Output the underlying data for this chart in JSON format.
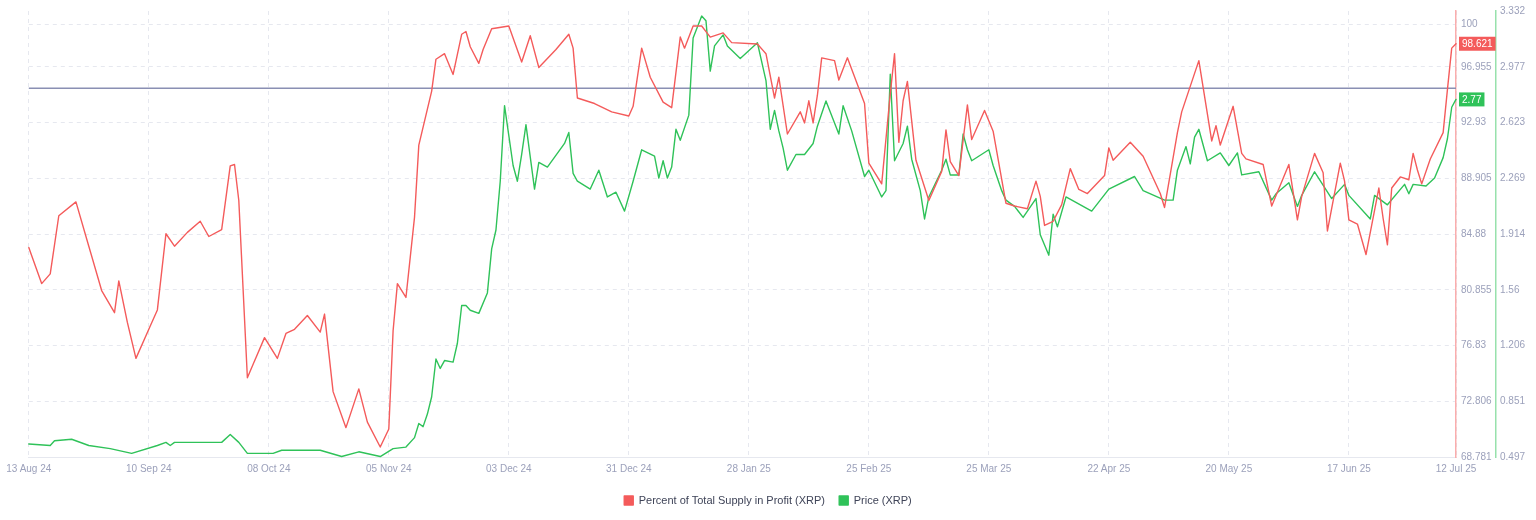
{
  "chart_data": {
    "type": "line",
    "series": [
      {
        "name": "Percent of Total Supply in Profit (XRP)",
        "color": "#f45b5b",
        "axis": "y",
        "x": [
          "2024-08-13",
          "2024-08-16",
          "2024-08-18",
          "2024-08-20",
          "2024-08-24",
          "2024-08-27",
          "2024-08-30",
          "2024-09-02",
          "2024-09-03",
          "2024-09-05",
          "2024-09-07",
          "2024-09-10",
          "2024-09-12",
          "2024-09-14",
          "2024-09-16",
          "2024-09-19",
          "2024-09-22",
          "2024-09-24",
          "2024-09-27",
          "2024-09-29",
          "2024-09-30",
          "2024-10-01",
          "2024-10-03",
          "2024-10-07",
          "2024-10-10",
          "2024-10-12",
          "2024-10-14",
          "2024-10-17",
          "2024-10-20",
          "2024-10-21",
          "2024-10-23",
          "2024-10-26",
          "2024-10-29",
          "2024-10-31",
          "2024-11-03",
          "2024-11-05",
          "2024-11-06",
          "2024-11-07",
          "2024-11-09",
          "2024-11-11",
          "2024-11-12",
          "2024-11-15",
          "2024-11-16",
          "2024-11-18",
          "2024-11-20",
          "2024-11-22",
          "2024-11-23",
          "2024-11-24",
          "2024-11-26",
          "2024-11-27",
          "2024-11-29",
          "2024-12-03",
          "2024-12-06",
          "2024-12-08",
          "2024-12-10",
          "2024-12-14",
          "2024-12-17",
          "2024-12-18",
          "2024-12-19",
          "2024-12-23",
          "2024-12-27",
          "2024-12-31",
          "2025-01-01",
          "2025-01-03",
          "2025-01-05",
          "2025-01-08",
          "2025-01-10",
          "2025-01-12",
          "2025-01-13",
          "2025-01-15",
          "2025-01-17",
          "2025-01-19",
          "2025-01-22",
          "2025-01-24",
          "2025-01-30",
          "2025-02-01",
          "2025-02-03",
          "2025-02-04",
          "2025-02-06",
          "2025-02-09",
          "2025-02-10",
          "2025-02-11",
          "2025-02-12",
          "2025-02-13",
          "2025-02-14",
          "2025-02-17",
          "2025-02-18",
          "2025-02-20",
          "2025-02-24",
          "2025-02-25",
          "2025-02-28",
          "2025-03-02",
          "2025-03-03",
          "2025-03-04",
          "2025-03-05",
          "2025-03-06",
          "2025-03-08",
          "2025-03-11",
          "2025-03-14",
          "2025-03-15",
          "2025-03-16",
          "2025-03-18",
          "2025-03-20",
          "2025-03-21",
          "2025-03-24",
          "2025-03-26",
          "2025-03-29",
          "2025-03-31",
          "2025-04-03",
          "2025-04-05",
          "2025-04-06",
          "2025-04-07",
          "2025-04-09",
          "2025-04-11",
          "2025-04-13",
          "2025-04-15",
          "2025-04-17",
          "2025-04-21",
          "2025-04-22",
          "2025-04-23",
          "2025-04-27",
          "2025-04-30",
          "2025-05-04",
          "2025-05-05",
          "2025-05-08",
          "2025-05-09",
          "2025-05-13",
          "2025-05-16",
          "2025-05-17",
          "2025-05-18",
          "2025-05-21",
          "2025-05-23",
          "2025-05-24",
          "2025-05-28",
          "2025-05-30",
          "2025-06-03",
          "2025-06-05",
          "2025-06-06",
          "2025-06-09",
          "2025-06-11",
          "2025-06-12",
          "2025-06-15",
          "2025-06-16",
          "2025-06-17",
          "2025-06-19",
          "2025-06-21",
          "2025-06-24",
          "2025-06-25",
          "2025-06-26",
          "2025-06-27",
          "2025-06-29",
          "2025-07-01",
          "2025-07-02",
          "2025-07-03",
          "2025-07-04",
          "2025-07-06",
          "2025-07-09",
          "2025-07-10",
          "2025-07-11",
          "2025-07-12"
        ],
        "values": [
          83.9,
          81.3,
          82.0,
          86.2,
          87.2,
          84.0,
          80.8,
          79.2,
          81.5,
          78.5,
          75.9,
          78.0,
          79.4,
          84.9,
          84.0,
          85.0,
          85.8,
          84.7,
          85.2,
          89.8,
          89.9,
          87.3,
          74.5,
          77.4,
          75.9,
          77.7,
          78.0,
          79.0,
          77.8,
          79.1,
          73.5,
          70.9,
          73.7,
          71.3,
          69.5,
          70.8,
          77.9,
          81.3,
          80.3,
          86.1,
          91.3,
          95.2,
          97.5,
          97.9,
          96.4,
          99.3,
          99.5,
          98.4,
          97.2,
          98.2,
          99.7,
          99.9,
          97.3,
          99.2,
          96.9,
          98.2,
          99.3,
          98.3,
          94.7,
          94.3,
          93.7,
          93.4,
          94.1,
          98.3,
          96.2,
          94.4,
          94.0,
          99.1,
          98.3,
          99.9,
          99.9,
          99.1,
          99.4,
          98.7,
          98.6,
          97.9,
          94.7,
          96.2,
          92.1,
          93.7,
          92.9,
          94.5,
          92.9,
          94.9,
          97.6,
          97.4,
          96.0,
          97.6,
          94.3,
          90.0,
          88.5,
          95.0,
          97.9,
          91.5,
          94.5,
          95.9,
          90.2,
          87.3,
          89.4,
          92.4,
          90.1,
          89.1,
          94.2,
          91.7,
          93.8,
          92.3,
          87.1,
          86.9,
          86.7,
          88.7,
          87.6,
          85.5,
          85.8,
          87.0,
          89.6,
          88.1,
          87.8,
          89.1,
          91.1,
          90.2,
          91.5,
          90.5,
          87.8,
          86.8,
          92.2,
          93.7,
          97.4,
          91.6,
          92.7,
          91.3,
          94.1,
          90.7,
          90.3,
          89.9,
          86.9,
          89.9,
          85.9,
          87.6,
          90.7,
          89.3,
          85.1,
          90.0,
          88.7,
          85.9,
          85.6,
          83.4,
          88.2,
          86.0,
          84.1,
          88.2,
          89.0,
          88.8,
          90.7,
          89.5,
          88.5,
          90.3,
          92.2,
          95.3,
          98.3,
          98.621
        ],
        "value_labels": [
          null,
          null,
          null,
          null,
          null,
          null,
          null,
          null,
          null,
          null,
          null,
          null,
          null,
          null,
          null,
          null,
          null,
          null,
          null,
          null,
          null,
          null,
          null,
          null,
          null,
          null,
          null,
          null,
          null,
          null,
          null,
          null,
          null,
          null,
          null,
          null,
          null,
          null,
          null,
          null,
          null,
          null,
          null,
          null,
          null,
          null,
          null,
          null,
          null,
          null,
          null,
          null,
          null,
          null,
          null,
          null,
          null,
          null,
          null,
          null,
          null,
          null,
          null,
          null,
          null,
          null,
          null,
          null,
          null,
          null,
          null,
          null,
          null,
          null,
          null,
          null,
          null,
          null,
          null,
          null,
          null,
          null,
          null,
          null,
          null,
          null,
          null,
          null,
          null,
          null,
          null,
          null,
          null,
          null,
          null,
          null,
          null,
          null,
          null,
          null,
          null,
          null,
          null,
          null,
          null,
          null,
          null,
          null,
          null,
          null,
          null,
          null,
          null,
          null,
          null,
          null,
          null,
          null,
          null,
          null,
          null,
          null,
          null,
          null,
          null,
          null,
          null,
          null,
          null,
          null,
          null,
          null,
          null,
          null,
          null,
          null,
          null,
          null,
          null,
          null,
          null,
          null,
          null,
          null,
          null,
          null,
          null,
          null,
          null,
          null,
          null,
          null,
          null,
          null,
          null,
          null,
          null,
          null,
          null,
          "98.621"
        ]
      },
      {
        "name": "Price (XRP)",
        "color": "#2fc259",
        "axis": "y2",
        "x": [
          "2024-08-13",
          "2024-08-18",
          "2024-08-19",
          "2024-08-23",
          "2024-08-27",
          "2024-09-01",
          "2024-09-06",
          "2024-09-12",
          "2024-09-14",
          "2024-09-15",
          "2024-09-16",
          "2024-09-27",
          "2024-09-29",
          "2024-10-01",
          "2024-10-03",
          "2024-10-09",
          "2024-10-11",
          "2024-10-20",
          "2024-10-25",
          "2024-10-29",
          "2024-11-03",
          "2024-11-06",
          "2024-11-09",
          "2024-11-11",
          "2024-11-12",
          "2024-11-13",
          "2024-11-14",
          "2024-11-15",
          "2024-11-16",
          "2024-11-17",
          "2024-11-18",
          "2024-11-20",
          "2024-11-21",
          "2024-11-22",
          "2024-11-23",
          "2024-11-24",
          "2024-11-26",
          "2024-11-28",
          "2024-11-29",
          "2024-11-30",
          "2024-12-01",
          "2024-12-02",
          "2024-12-03",
          "2024-12-04",
          "2024-12-05",
          "2024-12-06",
          "2024-12-07",
          "2024-12-09",
          "2024-12-10",
          "2024-12-12",
          "2024-12-16",
          "2024-12-17",
          "2024-12-18",
          "2024-12-19",
          "2024-12-22",
          "2024-12-24",
          "2024-12-26",
          "2024-12-28",
          "2024-12-30",
          "2025-01-01",
          "2025-01-03",
          "2025-01-06",
          "2025-01-07",
          "2025-01-08",
          "2025-01-09",
          "2025-01-10",
          "2025-01-11",
          "2025-01-12",
          "2025-01-14",
          "2025-01-15",
          "2025-01-16",
          "2025-01-17",
          "2025-01-18",
          "2025-01-19",
          "2025-01-20",
          "2025-01-22",
          "2025-01-23",
          "2025-01-26",
          "2025-01-30",
          "2025-02-01",
          "2025-02-02",
          "2025-02-03",
          "2025-02-04",
          "2025-02-05",
          "2025-02-06",
          "2025-02-08",
          "2025-02-10",
          "2025-02-12",
          "2025-02-13",
          "2025-02-15",
          "2025-02-18",
          "2025-02-19",
          "2025-02-21",
          "2025-02-24",
          "2025-02-25",
          "2025-02-28",
          "2025-03-01",
          "2025-03-02",
          "2025-03-03",
          "2025-03-05",
          "2025-03-06",
          "2025-03-07",
          "2025-03-09",
          "2025-03-10",
          "2025-03-11",
          "2025-03-14",
          "2025-03-15",
          "2025-03-16",
          "2025-03-18",
          "2025-03-19",
          "2025-03-20",
          "2025-03-21",
          "2025-03-25",
          "2025-03-26",
          "2025-03-28",
          "2025-03-29",
          "2025-03-31",
          "2025-04-02",
          "2025-04-05",
          "2025-04-06",
          "2025-04-08",
          "2025-04-09",
          "2025-04-10",
          "2025-04-12",
          "2025-04-18",
          "2025-04-22",
          "2025-04-28",
          "2025-04-30",
          "2025-05-05",
          "2025-05-07",
          "2025-05-08",
          "2025-05-10",
          "2025-05-11",
          "2025-05-12",
          "2025-05-13",
          "2025-05-15",
          "2025-05-18",
          "2025-05-20",
          "2025-05-22",
          "2025-05-23",
          "2025-05-27",
          "2025-05-30",
          "2025-05-31",
          "2025-06-03",
          "2025-06-05",
          "2025-06-06",
          "2025-06-09",
          "2025-06-13",
          "2025-06-16",
          "2025-06-17",
          "2025-06-22",
          "2025-06-23",
          "2025-06-26",
          "2025-06-30",
          "2025-07-01",
          "2025-07-02",
          "2025-07-05",
          "2025-07-07",
          "2025-07-09",
          "2025-07-10",
          "2025-07-11",
          "2025-07-12"
        ],
        "values": [
          0.58,
          0.57,
          0.6,
          0.61,
          0.57,
          0.55,
          0.52,
          0.57,
          0.59,
          0.57,
          0.59,
          0.59,
          0.64,
          0.59,
          0.52,
          0.52,
          0.54,
          0.54,
          0.5,
          0.53,
          0.5,
          0.55,
          0.56,
          0.62,
          0.71,
          0.69,
          0.77,
          0.88,
          1.12,
          1.06,
          1.11,
          1.1,
          1.22,
          1.46,
          1.46,
          1.43,
          1.41,
          1.54,
          1.82,
          1.94,
          2.25,
          2.73,
          2.54,
          2.35,
          2.25,
          2.42,
          2.61,
          2.2,
          2.37,
          2.34,
          2.49,
          2.56,
          2.3,
          2.25,
          2.2,
          2.32,
          2.15,
          2.18,
          2.06,
          2.25,
          2.45,
          2.41,
          2.27,
          2.38,
          2.27,
          2.34,
          2.58,
          2.51,
          2.67,
          3.16,
          3.23,
          3.3,
          3.27,
          2.95,
          3.11,
          3.18,
          3.11,
          3.03,
          3.13,
          2.89,
          2.58,
          2.7,
          2.57,
          2.46,
          2.32,
          2.42,
          2.42,
          2.49,
          2.6,
          2.76,
          2.55,
          2.73,
          2.57,
          2.28,
          2.32,
          2.15,
          2.19,
          2.93,
          2.38,
          2.49,
          2.6,
          2.39,
          2.19,
          2.01,
          2.15,
          2.32,
          2.39,
          2.29,
          2.29,
          2.55,
          2.45,
          2.38,
          2.45,
          2.35,
          2.19,
          2.13,
          2.09,
          2.02,
          2.14,
          1.91,
          1.78,
          2.04,
          1.96,
          2.15,
          2.06,
          2.2,
          2.28,
          2.19,
          2.13,
          2.13,
          2.32,
          2.47,
          2.36,
          2.53,
          2.58,
          2.38,
          2.43,
          2.35,
          2.43,
          2.29,
          2.31,
          2.13,
          2.17,
          2.24,
          2.09,
          2.16,
          2.31,
          2.14,
          2.23,
          2.16,
          2.01,
          2.16,
          2.1,
          2.23,
          2.17,
          2.23,
          2.22,
          2.27,
          2.4,
          2.52,
          2.72,
          2.77
        ],
        "value_labels": [
          null,
          null,
          null,
          null,
          null,
          null,
          null,
          null,
          null,
          null,
          null,
          null,
          null,
          null,
          null,
          null,
          null,
          null,
          null,
          null,
          null,
          null,
          null,
          null,
          null,
          null,
          null,
          null,
          null,
          null,
          null,
          null,
          null,
          null,
          null,
          null,
          null,
          null,
          null,
          null,
          null,
          null,
          null,
          null,
          null,
          null,
          null,
          null,
          null,
          null,
          null,
          null,
          null,
          null,
          null,
          null,
          null,
          null,
          null,
          null,
          null,
          null,
          null,
          null,
          null,
          null,
          null,
          null,
          null,
          null,
          null,
          null,
          null,
          null,
          null,
          null,
          null,
          null,
          null,
          null,
          null,
          null,
          null,
          null,
          null,
          null,
          null,
          null,
          null,
          null,
          null,
          null,
          null,
          null,
          null,
          null,
          null,
          null,
          null,
          null,
          null,
          null,
          null,
          null,
          null,
          null,
          null,
          null,
          null,
          null,
          null,
          null,
          null,
          null,
          null,
          null,
          null,
          null,
          null,
          null,
          null,
          null,
          null,
          null,
          null,
          null,
          null,
          null,
          null,
          null,
          null,
          null,
          null,
          null,
          null,
          null,
          null,
          null,
          null,
          null,
          null,
          null,
          null,
          null,
          null,
          null,
          null,
          null,
          null,
          null,
          null,
          null,
          null,
          null,
          null,
          null,
          null,
          null,
          null,
          null,
          null,
          "2.77"
        ]
      }
    ],
    "xlim": [
      "2024-08-13",
      "2025-07-12"
    ],
    "xticks": [
      {
        "value": "2024-08-13",
        "label": "13 Aug 24"
      },
      {
        "value": "2024-09-10",
        "label": "10 Sep 24"
      },
      {
        "value": "2024-10-08",
        "label": "08 Oct 24"
      },
      {
        "value": "2024-11-05",
        "label": "05 Nov 24"
      },
      {
        "value": "2024-12-03",
        "label": "03 Dec 24"
      },
      {
        "value": "2024-12-31",
        "label": "31 Dec 24"
      },
      {
        "value": "2025-01-28",
        "label": "28 Jan 25"
      },
      {
        "value": "2025-02-25",
        "label": "25 Feb 25"
      },
      {
        "value": "2025-03-25",
        "label": "25 Mar 25"
      },
      {
        "value": "2025-04-22",
        "label": "22 Apr 25"
      },
      {
        "value": "2025-05-20",
        "label": "20 May 25"
      },
      {
        "value": "2025-06-17",
        "label": "17 Jun 25"
      },
      {
        "value": "2025-07-12",
        "label": "12 Jul 25"
      }
    ],
    "ylim": [
      68.781,
      100.981
    ],
    "yticks": [
      68.781,
      72.806,
      76.83,
      80.855,
      84.88,
      88.905,
      92.93,
      96.955,
      100
    ],
    "y2lim": [
      0.497,
      3.332
    ],
    "y2ticks": [
      0.497,
      0.851,
      1.206,
      1.56,
      1.914,
      2.269,
      2.623,
      2.977,
      3.332
    ],
    "ref_lines": [
      {
        "axis": "y",
        "value": 95.4,
        "color": "#8a8fb3"
      }
    ],
    "grid": true,
    "legend": "bottom",
    "marker": "none",
    "line_style": "solid"
  }
}
